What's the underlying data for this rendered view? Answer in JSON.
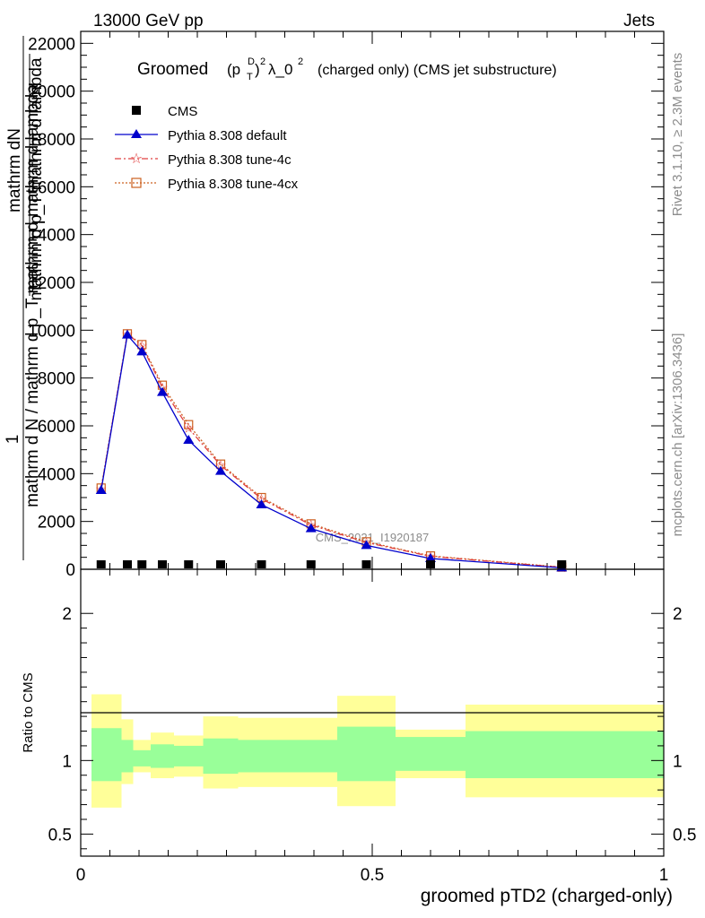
{
  "header": {
    "left": "13000 GeV pp",
    "right": "Jets"
  },
  "side": {
    "rivet": "Rivet 3.1.10, ≥ 2.3M events",
    "mcplots": "mcplots.cern.ch [arXiv:1306.3436]"
  },
  "chart_data": [
    {
      "type": "line",
      "title_main": "Groomed",
      "title_rest": "(charged only) (CMS jet substructure)",
      "ylabel_top": "mathrm dN",
      "ylabel_bottom": "mathrm d p_T mathrm d lambda",
      "ylabel_full": "1 / mathrm dN / mathrm d p_T mathrm d lambda",
      "ylabel_one": "1",
      "ylabel_denom": "mathrm d N / mathrm d p_T mathrm d mathrm d lambda",
      "watermark": "CMS_2021_I1920187",
      "ylim": [
        0,
        22500
      ],
      "xlim": [
        0,
        1
      ],
      "yticks": [
        0,
        2000,
        4000,
        6000,
        8000,
        10000,
        12000,
        14000,
        16000,
        18000,
        20000,
        22000
      ],
      "ytick_labels": [
        "0",
        "2000",
        "4000",
        "6000",
        "8000",
        "10000",
        "12000",
        "14000",
        "16000",
        "18000",
        "20000",
        "22000"
      ],
      "legend": [
        "CMS",
        "Pythia 8.308 default",
        "Pythia 8.308 tune-4c",
        "Pythia 8.308 tune-4cx"
      ],
      "legend_position": "top-left",
      "colors": {
        "cms": "#000000",
        "default": "#0000cc",
        "tune4c": "#e04040",
        "tune4cx": "#cc6020"
      },
      "x": [
        0.035,
        0.08,
        0.105,
        0.14,
        0.185,
        0.24,
        0.31,
        0.395,
        0.49,
        0.6,
        0.825
      ],
      "series": [
        {
          "name": "CMS",
          "values": [
            0,
            0,
            0,
            0,
            0,
            0,
            0,
            0,
            0,
            0,
            0
          ]
        },
        {
          "name": "Pythia 8.308 default",
          "values": [
            3300,
            9800,
            9100,
            7400,
            5400,
            4100,
            2700,
            1700,
            1000,
            450,
            60
          ]
        },
        {
          "name": "Pythia 8.308 tune-4c",
          "values": [
            3350,
            9850,
            9350,
            7600,
            5900,
            4350,
            2950,
            1850,
            1120,
            540,
            80
          ]
        },
        {
          "name": "Pythia 8.308 tune-4cx",
          "values": [
            3400,
            9850,
            9400,
            7700,
            6050,
            4400,
            3000,
            1900,
            1150,
            560,
            90
          ]
        }
      ]
    },
    {
      "type": "area",
      "ylabel": "Ratio to CMS",
      "xlabel": "groomed pTD2 (charged-only)",
      "ylim": [
        0.35,
        2.3
      ],
      "xlim": [
        0,
        1
      ],
      "yticks": [
        0.5,
        1,
        2
      ],
      "ytick_labels": [
        "0.5",
        "1",
        "2"
      ],
      "xticks": [
        0,
        0.5,
        1
      ],
      "xtick_labels": [
        "0",
        "0.5",
        "1"
      ],
      "colors": {
        "inner": "#99ff99",
        "outer": "#ffff99"
      },
      "bins": [
        {
          "x0": 0.0,
          "x1": 0.07,
          "inner": [
            0.86,
            1.22
          ],
          "outer": [
            0.68,
            1.45
          ]
        },
        {
          "x0": 0.07,
          "x1": 0.09,
          "inner": [
            0.92,
            1.14
          ],
          "outer": [
            0.84,
            1.28
          ]
        },
        {
          "x0": 0.09,
          "x1": 0.12,
          "inner": [
            0.96,
            1.07
          ],
          "outer": [
            0.92,
            1.14
          ]
        },
        {
          "x0": 0.12,
          "x1": 0.16,
          "inner": [
            0.95,
            1.11
          ],
          "outer": [
            0.88,
            1.19
          ]
        },
        {
          "x0": 0.16,
          "x1": 0.21,
          "inner": [
            0.96,
            1.1
          ],
          "outer": [
            0.89,
            1.17
          ]
        },
        {
          "x0": 0.21,
          "x1": 0.27,
          "inner": [
            0.91,
            1.15
          ],
          "outer": [
            0.81,
            1.3
          ]
        },
        {
          "x0": 0.27,
          "x1": 0.44,
          "inner": [
            0.92,
            1.14
          ],
          "outer": [
            0.82,
            1.29
          ]
        },
        {
          "x0": 0.44,
          "x1": 0.54,
          "inner": [
            0.86,
            1.23
          ],
          "outer": [
            0.69,
            1.44
          ]
        },
        {
          "x0": 0.54,
          "x1": 0.66,
          "inner": [
            0.93,
            1.16
          ],
          "outer": [
            0.88,
            1.21
          ]
        },
        {
          "x0": 0.66,
          "x1": 1.0,
          "inner": [
            0.88,
            1.2
          ],
          "outer": [
            0.75,
            1.38
          ]
        }
      ]
    }
  ]
}
